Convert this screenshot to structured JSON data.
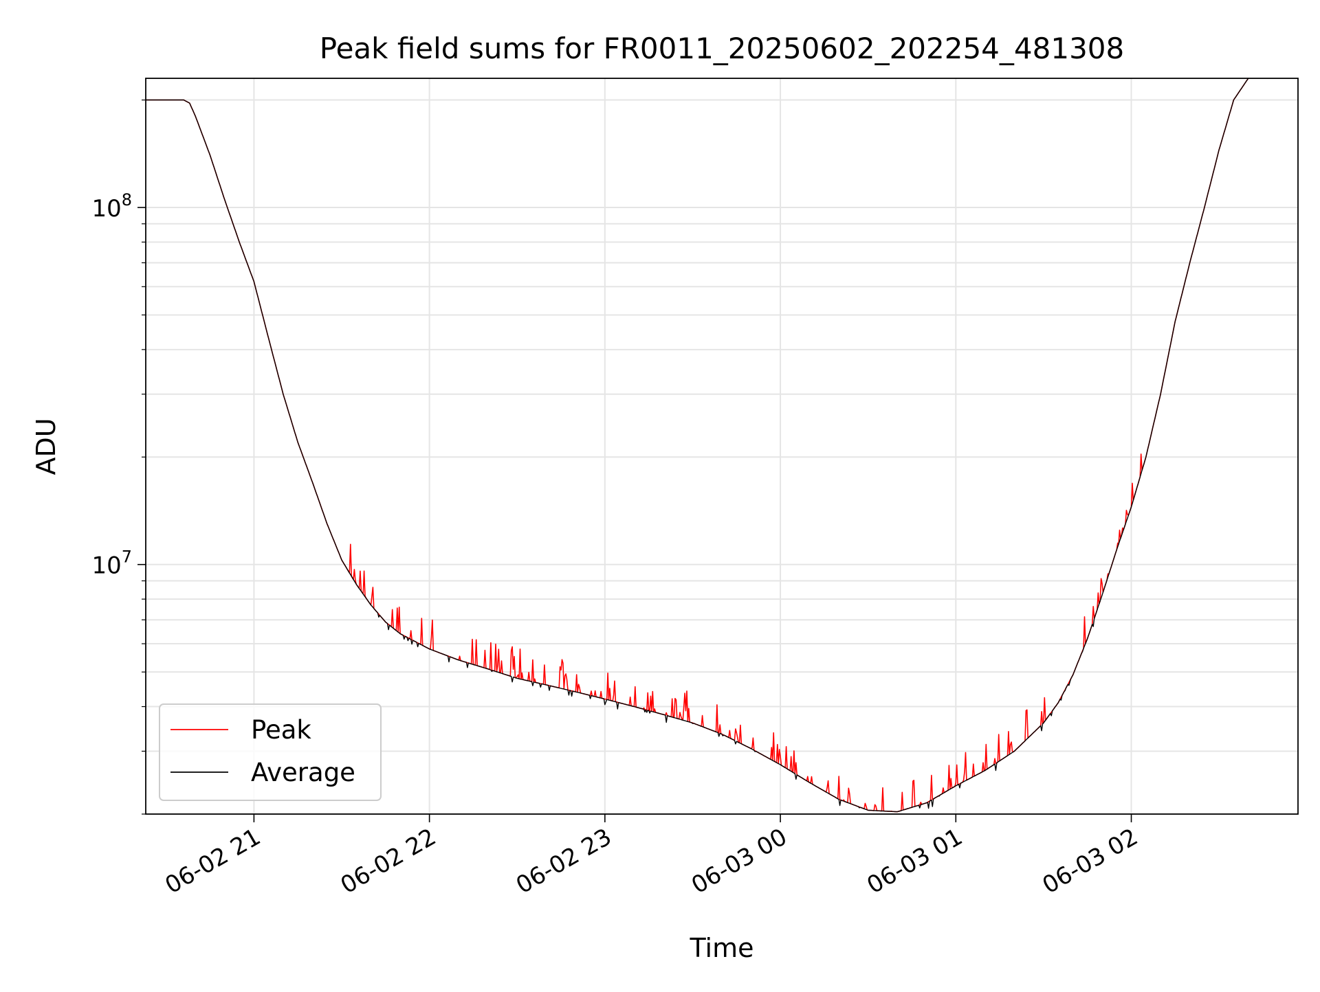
{
  "chart_data": {
    "type": "line",
    "title": "Peak field sums for FR0011_20250602_202254_481308",
    "xlabel": "Time",
    "ylabel": "ADU",
    "y_scale": "log",
    "ylim": [
      2000000,
      230000000
    ],
    "xlim": [
      "2025-06-02 20:23",
      "2025-06-03 02:57"
    ],
    "x_ticks": [
      {
        "x": "2025-06-02 21:00",
        "label": "06-02 21"
      },
      {
        "x": "2025-06-02 22:00",
        "label": "06-02 22"
      },
      {
        "x": "2025-06-02 23:00",
        "label": "06-02 23"
      },
      {
        "x": "2025-06-03 00:00",
        "label": "06-03 00"
      },
      {
        "x": "2025-06-03 01:00",
        "label": "06-03 01"
      },
      {
        "x": "2025-06-03 02:00",
        "label": "06-03 02"
      }
    ],
    "y_major_ticks": [
      {
        "y": 10000000,
        "base": "10",
        "exp": "7"
      },
      {
        "y": 100000000,
        "base": "10",
        "exp": "8"
      }
    ],
    "y_minor_ticks": [
      2000000,
      3000000,
      4000000,
      5000000,
      6000000,
      7000000,
      8000000,
      9000000,
      20000000,
      30000000,
      40000000,
      50000000,
      60000000,
      70000000,
      80000000,
      90000000,
      200000000
    ],
    "grid": true,
    "legend_position": "lower-left",
    "series": [
      {
        "name": "Peak",
        "color": "#ff0000",
        "noisy": true,
        "x": [
          "2025-06-02 20:23",
          "2025-06-02 20:36",
          "2025-06-02 20:38",
          "2025-06-02 20:40",
          "2025-06-02 20:45",
          "2025-06-02 20:50",
          "2025-06-02 20:55",
          "2025-06-02 21:00",
          "2025-06-02 21:05",
          "2025-06-02 21:10",
          "2025-06-02 21:15",
          "2025-06-02 21:20",
          "2025-06-02 21:25",
          "2025-06-02 21:30",
          "2025-06-02 21:35",
          "2025-06-02 21:40",
          "2025-06-02 21:45",
          "2025-06-02 21:50",
          "2025-06-02 22:00",
          "2025-06-02 22:10",
          "2025-06-02 22:20",
          "2025-06-02 22:30",
          "2025-06-02 22:40",
          "2025-06-02 22:50",
          "2025-06-02 23:00",
          "2025-06-02 23:10",
          "2025-06-02 23:20",
          "2025-06-02 23:30",
          "2025-06-02 23:40",
          "2025-06-02 23:50",
          "2025-06-03 00:00",
          "2025-06-03 00:10",
          "2025-06-03 00:20",
          "2025-06-03 00:30",
          "2025-06-03 00:40",
          "2025-06-03 00:50",
          "2025-06-03 01:00",
          "2025-06-03 01:10",
          "2025-06-03 01:20",
          "2025-06-03 01:30",
          "2025-06-03 01:35",
          "2025-06-03 01:40",
          "2025-06-03 01:45",
          "2025-06-03 01:50",
          "2025-06-03 01:55",
          "2025-06-03 02:00",
          "2025-06-03 02:05",
          "2025-06-03 02:10",
          "2025-06-03 02:15",
          "2025-06-03 02:20",
          "2025-06-03 02:25",
          "2025-06-03 02:30",
          "2025-06-03 02:35",
          "2025-06-03 02:40"
        ],
        "y": [
          200000000,
          200000000,
          196000000,
          180000000,
          140000000,
          105000000,
          80000000,
          62000000,
          43000000,
          30000000,
          22000000,
          17000000,
          13000000,
          10300000,
          8800000,
          7700000,
          6900000,
          6400000,
          5800000,
          5400000,
          5100000,
          4800000,
          4600000,
          4400000,
          4200000,
          4000000,
          3800000,
          3600000,
          3350000,
          3050000,
          2750000,
          2450000,
          2200000,
          2050000,
          2030000,
          2150000,
          2400000,
          2650000,
          3000000,
          3600000,
          4100000,
          4900000,
          6200000,
          8200000,
          11000000,
          14500000,
          20000000,
          30000000,
          48000000,
          70000000,
          100000000,
          145000000,
          200000000,
          230000000
        ]
      },
      {
        "name": "Average",
        "color": "#000000",
        "noisy": false,
        "x": [
          "2025-06-02 20:23",
          "2025-06-02 20:36",
          "2025-06-02 20:38",
          "2025-06-02 20:40",
          "2025-06-02 20:45",
          "2025-06-02 20:50",
          "2025-06-02 20:55",
          "2025-06-02 21:00",
          "2025-06-02 21:05",
          "2025-06-02 21:10",
          "2025-06-02 21:15",
          "2025-06-02 21:20",
          "2025-06-02 21:25",
          "2025-06-02 21:30",
          "2025-06-02 21:35",
          "2025-06-02 21:40",
          "2025-06-02 21:45",
          "2025-06-02 21:50",
          "2025-06-02 22:00",
          "2025-06-02 22:10",
          "2025-06-02 22:20",
          "2025-06-02 22:30",
          "2025-06-02 22:40",
          "2025-06-02 22:50",
          "2025-06-02 23:00",
          "2025-06-02 23:10",
          "2025-06-02 23:20",
          "2025-06-02 23:30",
          "2025-06-02 23:40",
          "2025-06-02 23:50",
          "2025-06-03 00:00",
          "2025-06-03 00:10",
          "2025-06-03 00:20",
          "2025-06-03 00:30",
          "2025-06-03 00:40",
          "2025-06-03 00:50",
          "2025-06-03 01:00",
          "2025-06-03 01:10",
          "2025-06-03 01:20",
          "2025-06-03 01:30",
          "2025-06-03 01:35",
          "2025-06-03 01:40",
          "2025-06-03 01:45",
          "2025-06-03 01:50",
          "2025-06-03 01:55",
          "2025-06-03 02:00",
          "2025-06-03 02:05",
          "2025-06-03 02:10",
          "2025-06-03 02:15",
          "2025-06-03 02:20",
          "2025-06-03 02:25",
          "2025-06-03 02:30",
          "2025-06-03 02:35",
          "2025-06-03 02:40"
        ],
        "y": [
          200000000,
          200000000,
          196000000,
          180000000,
          140000000,
          105000000,
          80000000,
          62000000,
          43000000,
          30000000,
          22000000,
          17000000,
          13000000,
          10300000,
          8800000,
          7700000,
          6900000,
          6400000,
          5800000,
          5400000,
          5100000,
          4800000,
          4600000,
          4400000,
          4200000,
          4000000,
          3800000,
          3600000,
          3350000,
          3050000,
          2750000,
          2450000,
          2200000,
          2050000,
          2030000,
          2150000,
          2400000,
          2650000,
          3000000,
          3600000,
          4100000,
          4900000,
          6200000,
          8200000,
          11000000,
          14500000,
          20000000,
          30000000,
          48000000,
          70000000,
          100000000,
          145000000,
          200000000,
          230000000
        ]
      }
    ]
  }
}
